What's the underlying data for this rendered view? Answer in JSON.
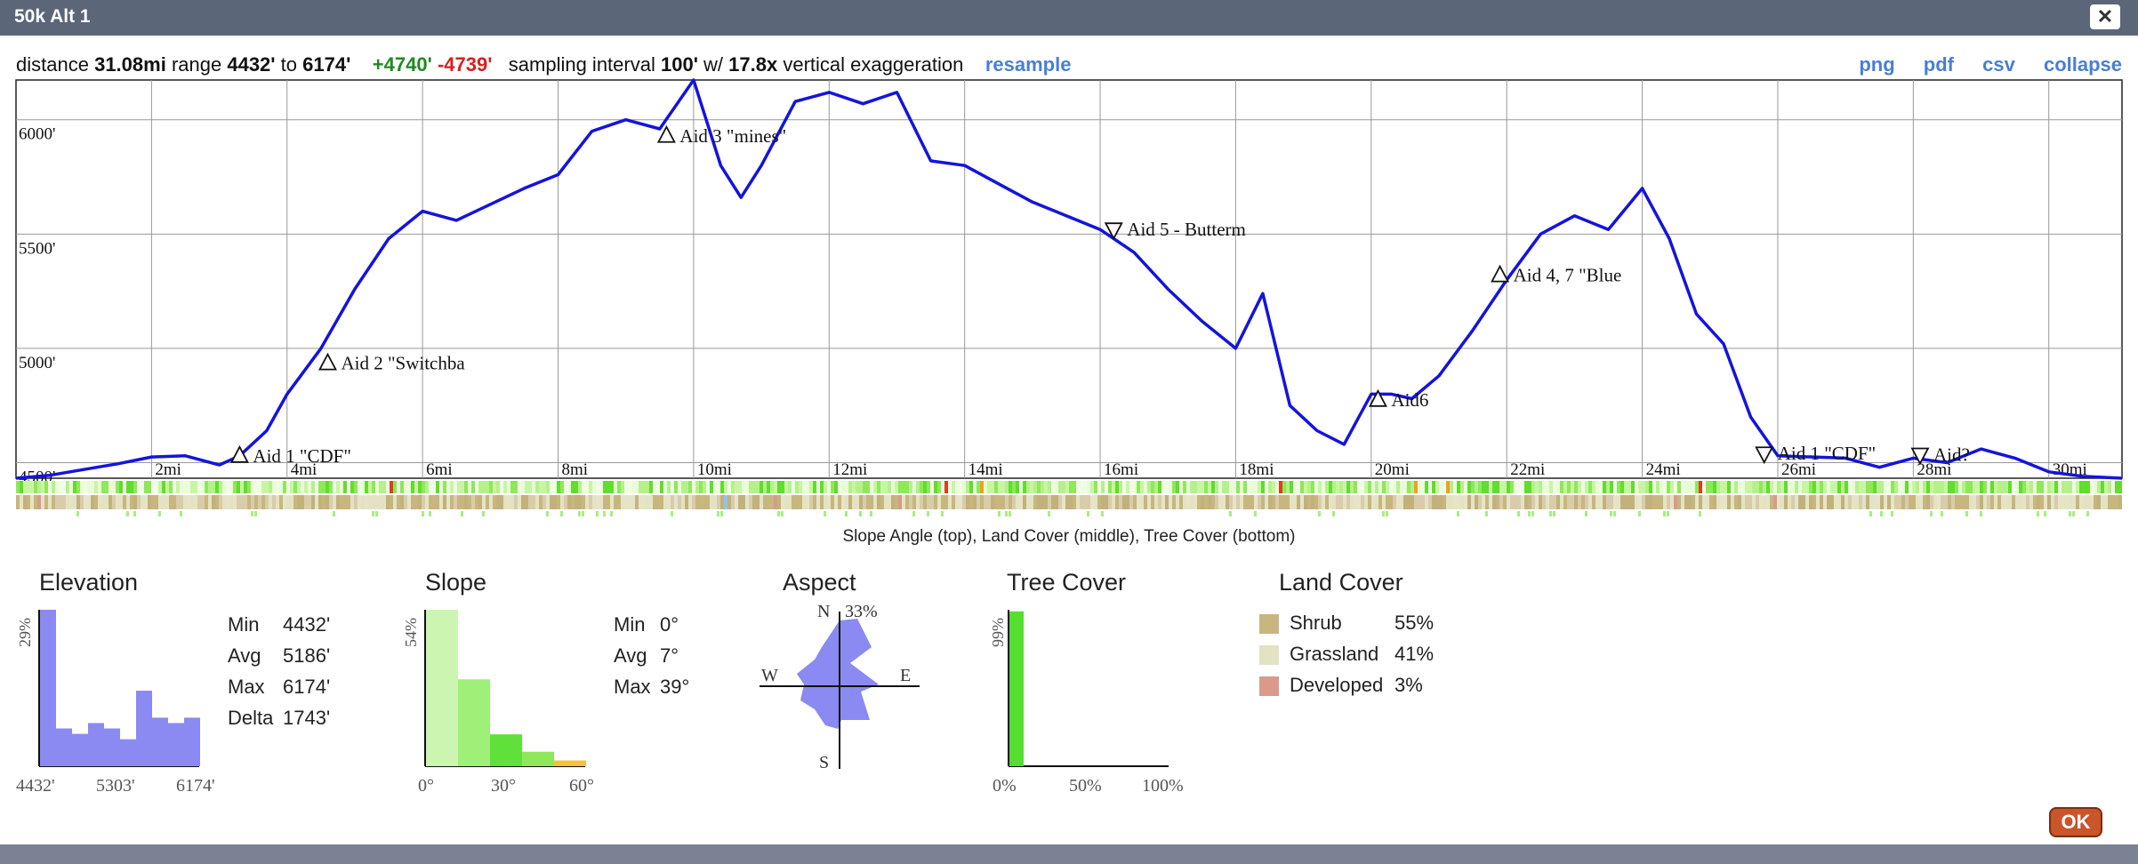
{
  "window": {
    "title": "50k Alt 1",
    "close_label": "✕"
  },
  "info": {
    "distance_label": "distance",
    "distance": "31.08mi",
    "range_label": "range",
    "range_min": "4432'",
    "range_to": "to",
    "range_max": "6174'",
    "gain": "+4740'",
    "loss": "-4739'",
    "sampling_label": "sampling interval",
    "sampling": "100'",
    "with_label": "w/",
    "exaggeration": "17.8x",
    "exaggeration_label": "vertical exaggeration",
    "resample": "resample"
  },
  "links": {
    "png": "png",
    "pdf": "pdf",
    "csv": "csv",
    "collapse": "collapse"
  },
  "colors": {
    "profile": "#1414dc",
    "accent_link": "#4a7fd0",
    "gain": "#1f8a1f",
    "loss": "#d42020",
    "ok": "#c9552b"
  },
  "chart_data": {
    "type": "line",
    "y_tick_labels": [
      "6000'",
      "5500'",
      "5000'",
      "4500'"
    ],
    "y_ticks": [
      6000,
      5500,
      5000,
      4500
    ],
    "ylim": [
      4432,
      6174
    ],
    "xlim": [
      0,
      31.08
    ],
    "x_ticks": [
      2,
      4,
      6,
      8,
      10,
      12,
      14,
      16,
      18,
      20,
      22,
      24,
      26,
      28,
      30
    ],
    "x_tick_labels": [
      "2mi",
      "4mi",
      "6mi",
      "8mi",
      "10mi",
      "12mi",
      "14mi",
      "16mi",
      "18mi",
      "20mi",
      "22mi",
      "24mi",
      "26mi",
      "28mi",
      "30mi"
    ],
    "grid": true,
    "series": [
      {
        "x": [
          0,
          0.5,
          1,
          1.5,
          2,
          2.5,
          3,
          3.3,
          3.7,
          4,
          4.5,
          5,
          5.5,
          6,
          6.5,
          7,
          7.5,
          8,
          8.5,
          9,
          9.5,
          10,
          10.4,
          10.7,
          11,
          11.5,
          12,
          12.5,
          13,
          13.5,
          14,
          14.5,
          15,
          16,
          16.5,
          17,
          17.5,
          18,
          18.4,
          18.8,
          19.2,
          19.6,
          20,
          20.3,
          20.6,
          21,
          21.5,
          22,
          22.5,
          23,
          23.5,
          24,
          24.4,
          24.8,
          25.2,
          25.6,
          26,
          27,
          27.5,
          28,
          28.5,
          29,
          29.5,
          30,
          30.5,
          31.08
        ],
        "y": [
          4432,
          4445,
          4470,
          4495,
          4525,
          4530,
          4490,
          4530,
          4640,
          4800,
          5000,
          5260,
          5480,
          5600,
          5560,
          5630,
          5700,
          5760,
          5950,
          6000,
          5960,
          6174,
          5800,
          5660,
          5800,
          6080,
          6120,
          6070,
          6120,
          5820,
          5800,
          5720,
          5640,
          5520,
          5420,
          5260,
          5120,
          5000,
          5240,
          4750,
          4640,
          4580,
          4800,
          4800,
          4780,
          4880,
          5080,
          5300,
          5500,
          5580,
          5520,
          5700,
          5480,
          5150,
          5020,
          4700,
          4530,
          4520,
          4480,
          4520,
          4500,
          4560,
          4520,
          4460,
          4440,
          4432
        ],
        "color": "#1414dc"
      }
    ],
    "markers": [
      {
        "label": "Aid 1 \"CDF\"",
        "x": 3.3,
        "y": 4530,
        "symbol": "up"
      },
      {
        "label": "Aid 2 \"Switchba",
        "x": 4.6,
        "y": 4935,
        "symbol": "up"
      },
      {
        "label": "Aid 3 \"mines\"",
        "x": 9.6,
        "y": 5930,
        "symbol": "up"
      },
      {
        "label": "Aid 5 - Butterm",
        "x": 16.2,
        "y": 5520,
        "symbol": "down"
      },
      {
        "label": "Aid 4, 7 \"Blue",
        "x": 21.9,
        "y": 5320,
        "symbol": "up"
      },
      {
        "label": "Aid6",
        "x": 20.1,
        "y": 4775,
        "symbol": "up"
      },
      {
        "label": "Aid 1 \"CDF\"",
        "x": 25.8,
        "y": 4540,
        "symbol": "down"
      },
      {
        "label": "Aid?",
        "x": 28.1,
        "y": 4535,
        "symbol": "down"
      }
    ]
  },
  "caption": "Slope Angle (top), Land Cover (middle), Tree Cover (bottom)",
  "elevation": {
    "title": "Elevation",
    "ymax_label": "29%",
    "bars": [
      29,
      7,
      6,
      8,
      7,
      5,
      14,
      9,
      8,
      9
    ],
    "axis_labels": [
      "4432'",
      "5303'",
      "6174'"
    ],
    "stats": [
      {
        "k": "Min",
        "v": "4432'"
      },
      {
        "k": "Avg",
        "v": "5186'"
      },
      {
        "k": "Max",
        "v": "6174'"
      },
      {
        "k": "Delta",
        "v": "1743'"
      }
    ]
  },
  "slope": {
    "title": "Slope",
    "ymax_label": "54%",
    "bars": [
      54,
      30,
      11,
      5,
      2
    ],
    "axis_labels": [
      "0°",
      "30°",
      "60°"
    ],
    "stats": [
      {
        "k": "Min",
        "v": "0°"
      },
      {
        "k": "Avg",
        "v": "7°"
      },
      {
        "k": "Max",
        "v": "39°"
      }
    ]
  },
  "aspect": {
    "title": "Aspect",
    "n": "N",
    "pct": "33%",
    "e": "E",
    "s": "S",
    "w": "W"
  },
  "tree_cover": {
    "title": "Tree Cover",
    "ymax_label": "99%",
    "value": 99,
    "axis_labels": [
      "0%",
      "50%",
      "100%"
    ]
  },
  "land_cover": {
    "title": "Land Cover",
    "items": [
      {
        "label": "Shrub",
        "pct": "55%",
        "color": "#c8b67e"
      },
      {
        "label": "Grassland",
        "pct": "41%",
        "color": "#e3e3c3"
      },
      {
        "label": "Developed",
        "pct": "3%",
        "color": "#d99a8c"
      }
    ]
  },
  "ok_label": "OK"
}
